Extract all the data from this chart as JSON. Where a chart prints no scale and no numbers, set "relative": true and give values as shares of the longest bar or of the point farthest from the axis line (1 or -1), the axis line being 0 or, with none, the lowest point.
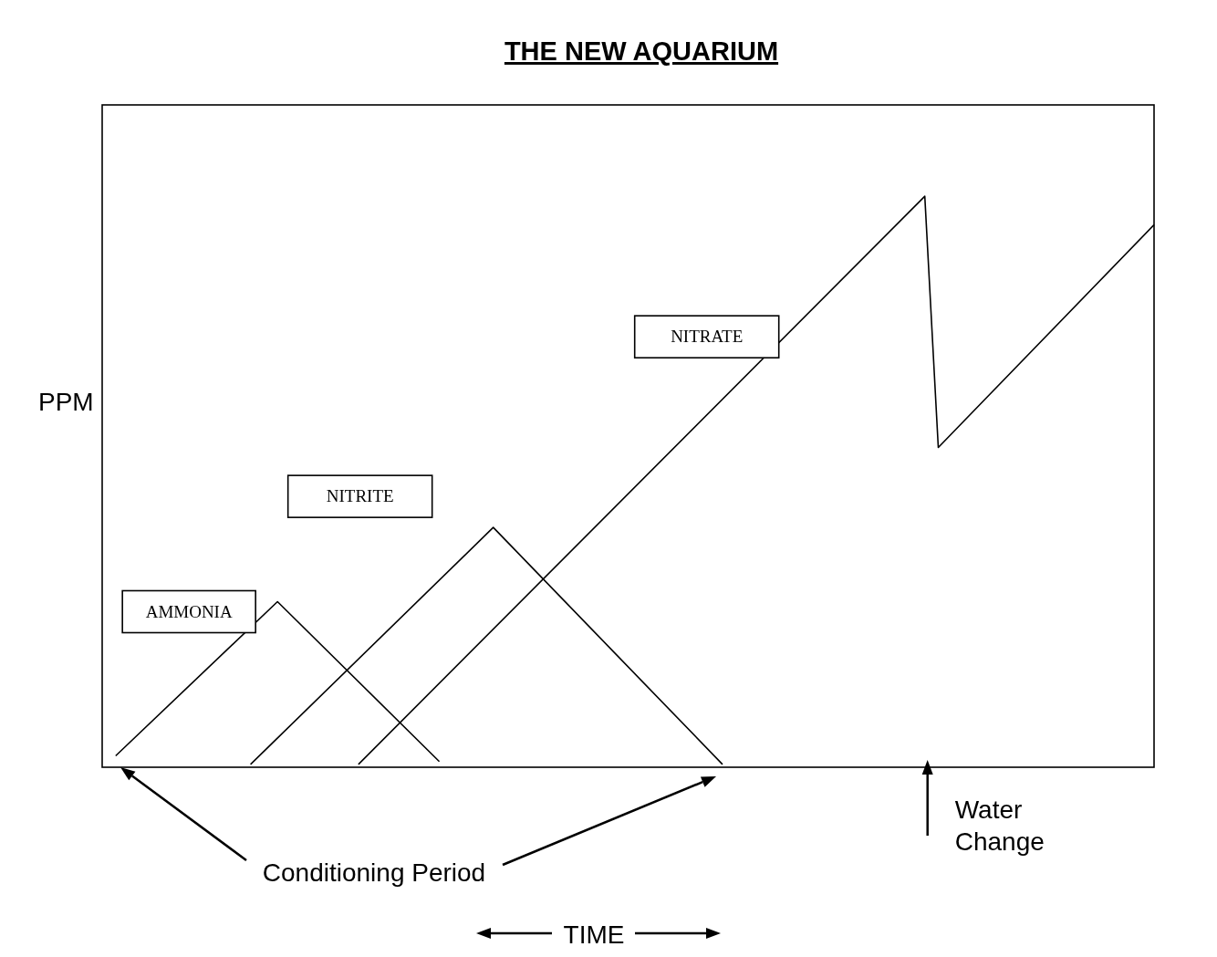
{
  "chart_data": {
    "type": "line",
    "title": "THE NEW AQUARIUM",
    "ylabel": "PPM",
    "relative": true,
    "marker": "none",
    "line_style": "solid",
    "categories": [
      null,
      null,
      null,
      null,
      null,
      null,
      null,
      null,
      null,
      null,
      null,
      null,
      null,
      null,
      null,
      null,
      null,
      null,
      null,
      null,
      null,
      null,
      null,
      null,
      null,
      null,
      null,
      null,
      null,
      null,
      null,
      null,
      null,
      null,
      null,
      null,
      null,
      null,
      null,
      null,
      null,
      null,
      null,
      null,
      null,
      null,
      null,
      null,
      null,
      null,
      null,
      null,
      null,
      null,
      null,
      null,
      null,
      null,
      null,
      null,
      null,
      null,
      null,
      null,
      null,
      null,
      null,
      null,
      null,
      null,
      null,
      null,
      null,
      null,
      null,
      null,
      null,
      null,
      null
    ],
    "series": [
      {
        "name": "AMMONIA",
        "color": "#000000",
        "values": [
          null,
          0.02,
          null,
          null,
          null,
          null,
          null,
          null,
          null,
          null,
          null,
          null,
          null,
          0.29,
          null,
          null,
          null,
          null,
          null,
          null,
          null,
          null,
          null,
          null,
          null,
          0.01,
          null,
          null,
          null,
          null,
          null,
          null,
          null,
          null,
          null,
          null,
          null,
          null,
          null,
          null,
          null,
          null,
          null,
          null,
          null,
          null,
          null,
          null,
          null,
          null,
          null,
          null,
          null,
          null,
          null,
          null,
          null,
          null,
          null,
          null,
          null,
          null,
          null,
          null,
          null,
          null,
          null,
          null,
          null,
          null,
          null,
          null,
          null,
          null,
          null,
          null,
          null,
          null,
          null
        ]
      },
      {
        "name": "NITRITE",
        "color": "#000000",
        "values": [
          null,
          null,
          null,
          null,
          null,
          null,
          null,
          null,
          null,
          null,
          null,
          0.005,
          null,
          null,
          null,
          null,
          null,
          null,
          null,
          null,
          null,
          null,
          null,
          null,
          null,
          null,
          null,
          null,
          null,
          0.42,
          null,
          null,
          null,
          null,
          null,
          null,
          null,
          null,
          null,
          null,
          null,
          null,
          null,
          null,
          null,
          null,
          0.005,
          null,
          null,
          null,
          null,
          null,
          null,
          null,
          null,
          null,
          null,
          null,
          null,
          null,
          null,
          null,
          null,
          null,
          null,
          null,
          null,
          null,
          null,
          null,
          null,
          null,
          null,
          null,
          null,
          null,
          null,
          null,
          null
        ]
      },
      {
        "name": "NITRATE",
        "color": "#000000",
        "values": [
          null,
          null,
          null,
          null,
          null,
          null,
          null,
          null,
          null,
          null,
          null,
          null,
          null,
          null,
          null,
          null,
          null,
          null,
          null,
          0.005,
          null,
          null,
          null,
          null,
          null,
          null,
          null,
          null,
          null,
          null,
          null,
          null,
          null,
          null,
          null,
          null,
          null,
          null,
          null,
          null,
          null,
          null,
          null,
          null,
          null,
          null,
          null,
          null,
          null,
          null,
          null,
          null,
          null,
          null,
          null,
          null,
          null,
          null,
          null,
          null,
          null,
          1.0,
          0.56,
          null,
          null,
          null,
          null,
          null,
          null,
          null,
          null,
          null,
          null,
          null,
          null,
          null,
          null,
          null,
          0.95
        ]
      }
    ],
    "annotations": [
      "Conditioning Period",
      "Water Change",
      "TIME"
    ]
  }
}
